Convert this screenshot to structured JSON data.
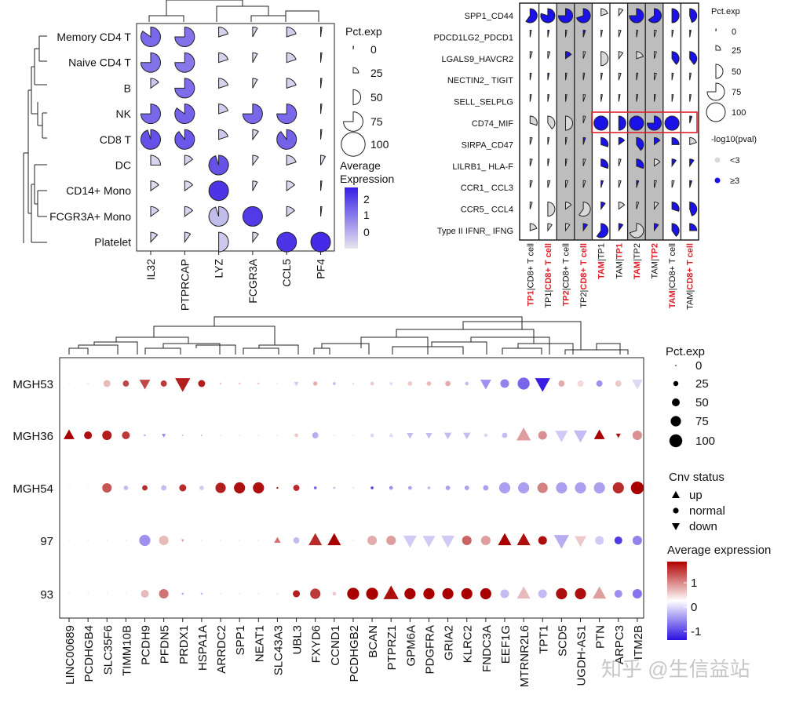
{
  "watermark": "知乎 @生信益站",
  "chart_data": [
    {
      "id": "topleft",
      "type": "pie-dotplot",
      "title": "",
      "rows": [
        "Memory CD4 T",
        "Naive CD4 T",
        "B",
        "NK",
        "CD8 T",
        "DC",
        "CD14+ Mono",
        "FCGR3A+ Mono",
        "Platelet"
      ],
      "cols": [
        "IL32",
        "PTPRCAP",
        "LYZ",
        "FCGR3A",
        "CCL5",
        "PF4"
      ],
      "pct_exp": [
        [
          85,
          75,
          20,
          8,
          20,
          2
        ],
        [
          75,
          75,
          20,
          8,
          20,
          2
        ],
        [
          15,
          75,
          20,
          8,
          20,
          2
        ],
        [
          75,
          85,
          20,
          75,
          75,
          2
        ],
        [
          95,
          90,
          20,
          10,
          90,
          2
        ],
        [
          25,
          15,
          95,
          10,
          20,
          8
        ],
        [
          15,
          15,
          100,
          8,
          15,
          2
        ],
        [
          15,
          15,
          95,
          100,
          15,
          2
        ],
        [
          12,
          10,
          50,
          10,
          100,
          100
        ]
      ],
      "avg_exp": [
        [
          1.2,
          1.0,
          -0.7,
          -0.8,
          -0.6,
          -0.9
        ],
        [
          1.0,
          0.9,
          -0.7,
          -0.8,
          -0.7,
          -0.9
        ],
        [
          -0.5,
          1.1,
          -0.7,
          -0.8,
          -0.7,
          -0.9
        ],
        [
          1.2,
          1.3,
          -0.6,
          1.2,
          1.2,
          -0.9
        ],
        [
          1.6,
          1.5,
          -0.5,
          -0.7,
          1.3,
          -0.9
        ],
        [
          -0.7,
          -0.7,
          1.6,
          -0.8,
          -0.7,
          -0.8
        ],
        [
          -0.8,
          -0.8,
          2.1,
          -0.8,
          -0.8,
          -0.9
        ],
        [
          -0.7,
          -0.7,
          -0.3,
          2.0,
          -0.7,
          -0.9
        ],
        [
          -0.7,
          -0.7,
          -0.5,
          -0.8,
          2.1,
          2.3
        ]
      ],
      "legend_size_title": "Pct.exp",
      "legend_size_values": [
        "0",
        "25",
        "50",
        "75",
        "100"
      ],
      "legend_color_title": "Average\nExpression",
      "legend_color_ticks": [
        "2",
        "1",
        "0"
      ]
    },
    {
      "id": "topright",
      "type": "pie-dotplot",
      "rows": [
        "SPP1_CD44",
        "PDCD1LG2_PDCD1",
        "LGALS9_HAVCR2",
        "NECTIN2_ TIGIT",
        "SELL_SELPLG",
        "CD74_MIF",
        "SIRPA_CD47",
        "LILRB1_ HLA-F",
        "CCR1_ CCL3",
        "CCR5_ CCL4",
        "Type II IFNR_ IFNG"
      ],
      "cols": [
        {
          "parts": [
            "TP1",
            "|CD8+ T cell"
          ],
          "red": [
            true,
            false
          ]
        },
        {
          "parts": [
            "TP1",
            "|",
            "CD8+ T cell"
          ],
          "red": [
            false,
            false,
            true
          ]
        },
        {
          "parts": [
            "TP2",
            "|CD8+ T cell"
          ],
          "red": [
            true,
            false
          ]
        },
        {
          "parts": [
            "TP2",
            "|",
            "CD8+ T cell"
          ],
          "red": [
            false,
            false,
            true
          ]
        },
        {
          "parts": [
            "TAM",
            "|TP1"
          ],
          "red": [
            true,
            false
          ]
        },
        {
          "parts": [
            "TAM|",
            "TP1"
          ],
          "red": [
            false,
            true
          ]
        },
        {
          "parts": [
            "TAM",
            "|TP2"
          ],
          "red": [
            true,
            false
          ]
        },
        {
          "parts": [
            "TAM|",
            "TP2"
          ],
          "red": [
            false,
            true
          ]
        },
        {
          "parts": [
            "TAM",
            "|CD8+ T cell"
          ],
          "red": [
            true,
            false
          ]
        },
        {
          "parts": [
            "TAM|",
            "CD8+ T cell"
          ],
          "red": [
            false,
            true
          ]
        }
      ],
      "shaded_cols": [
        2,
        3,
        6,
        7
      ],
      "pct": [
        [
          60,
          80,
          75,
          70,
          20,
          10,
          75,
          65,
          50,
          45
        ],
        [
          3,
          3,
          3,
          5,
          3,
          5,
          3,
          5,
          3,
          3
        ],
        [
          5,
          5,
          15,
          5,
          50,
          10,
          20,
          5,
          40,
          40
        ],
        [
          3,
          3,
          3,
          3,
          3,
          5,
          3,
          5,
          3,
          3
        ],
        [
          3,
          3,
          3,
          5,
          3,
          3,
          3,
          3,
          3,
          3
        ],
        [
          30,
          40,
          50,
          5,
          100,
          50,
          100,
          75,
          100,
          5
        ],
        [
          5,
          3,
          3,
          5,
          30,
          15,
          40,
          15,
          25,
          20
        ],
        [
          5,
          3,
          3,
          5,
          30,
          5,
          30,
          15,
          10,
          10
        ],
        [
          5,
          5,
          5,
          5,
          5,
          5,
          5,
          5,
          5,
          5
        ],
        [
          5,
          50,
          15,
          60,
          10,
          15,
          5,
          10,
          30,
          45
        ],
        [
          20,
          10,
          10,
          10,
          60,
          10,
          70,
          10,
          40,
          25
        ]
      ],
      "sig": [
        [
          1,
          1,
          1,
          1,
          0,
          0,
          1,
          1,
          1,
          1
        ],
        [
          0,
          1,
          0,
          1,
          0,
          0,
          0,
          0,
          0,
          1
        ],
        [
          0,
          0,
          1,
          0,
          0,
          0,
          0,
          0,
          1,
          1
        ],
        [
          0,
          1,
          0,
          0,
          0,
          0,
          0,
          0,
          0,
          0
        ],
        [
          0,
          0,
          0,
          0,
          0,
          0,
          0,
          0,
          0,
          0
        ],
        [
          0,
          0,
          0,
          0,
          1,
          1,
          1,
          1,
          1,
          1
        ],
        [
          0,
          0,
          0,
          1,
          1,
          1,
          1,
          1,
          1,
          0
        ],
        [
          0,
          0,
          0,
          0,
          1,
          0,
          1,
          0,
          1,
          1
        ],
        [
          0,
          0,
          0,
          0,
          1,
          0,
          1,
          0,
          0,
          1
        ],
        [
          0,
          0,
          0,
          0,
          1,
          0,
          0,
          0,
          1,
          1
        ],
        [
          0,
          0,
          0,
          1,
          1,
          1,
          0,
          1,
          1,
          1
        ]
      ],
      "highlight_row": "CD74_MIF",
      "legend_size_title": "Pct.exp",
      "legend_size_values": [
        "0",
        "25",
        "50",
        "75",
        "100"
      ],
      "legend_color_title": "-log10(pval)",
      "legend_color_values": [
        "<3",
        "≥3"
      ]
    },
    {
      "id": "bottom",
      "type": "scatter",
      "rows": [
        "MGH53",
        "MGH36",
        "MGH54",
        "97",
        "93"
      ],
      "cols": [
        "LINC00689",
        "PCDHGB4",
        "SLC35F6",
        "TIMM10B",
        "PCDH9",
        "PFDN5",
        "PRDX1",
        "HSPA1A",
        "ARRDC2",
        "SPP1",
        "NEAT1",
        "SLC43A3",
        "UBL3",
        "FXYD6",
        "CCND1",
        "PCDHGB2",
        "BCAN",
        "PTPRZ1",
        "GPM6A",
        "PDGFRA",
        "GRIA2",
        "KLRC2",
        "FNDC3A",
        "EEF1G",
        "MTRNR2L6",
        "TPT1",
        "SCD5",
        "UGDH-AS1",
        "PTN",
        "ARPC3",
        "ITM2B"
      ],
      "pct": [
        [
          1,
          3,
          35,
          30,
          55,
          30,
          80,
          35,
          5,
          5,
          5,
          2,
          20,
          18,
          10,
          5,
          15,
          10,
          20,
          20,
          25,
          15,
          55,
          45,
          65,
          80,
          30,
          30,
          30,
          30,
          55
        ],
        [
          55,
          40,
          50,
          40,
          3,
          15,
          5,
          2,
          2,
          2,
          2,
          2,
          15,
          30,
          2,
          2,
          15,
          20,
          30,
          30,
          35,
          35,
          15,
          25,
          75,
          45,
          65,
          70,
          55,
          20,
          50
        ],
        [
          1,
          1,
          50,
          20,
          25,
          25,
          35,
          20,
          55,
          60,
          60,
          3,
          30,
          10,
          5,
          5,
          10,
          15,
          15,
          10,
          20,
          20,
          25,
          60,
          60,
          55,
          60,
          60,
          60,
          60,
          70
        ],
        [
          1,
          1,
          1,
          2,
          60,
          50,
          10,
          2,
          2,
          2,
          2,
          30,
          30,
          70,
          70,
          2,
          50,
          50,
          70,
          65,
          70,
          50,
          50,
          70,
          70,
          45,
          80,
          60,
          45,
          40,
          50
        ],
        [
          1,
          1,
          1,
          1,
          40,
          50,
          5,
          5,
          2,
          2,
          2,
          5,
          35,
          55,
          15,
          65,
          65,
          80,
          60,
          60,
          60,
          60,
          60,
          45,
          70,
          45,
          60,
          60,
          70,
          40,
          50
        ]
      ],
      "avg": [
        [
          0,
          0,
          0.3,
          1.1,
          1.1,
          1.2,
          1.4,
          1.4,
          0.2,
          0.2,
          0.2,
          0,
          -0.2,
          0.4,
          -0.3,
          0.1,
          0.2,
          -0.1,
          0.2,
          0.3,
          0.4,
          -0.3,
          -0.6,
          -0.7,
          -0.9,
          -1.4,
          0.4,
          0.1,
          -0.6,
          0.2,
          -0.1
        ],
        [
          1.6,
          1.5,
          1.4,
          1.2,
          -0.5,
          -0.7,
          -0.3,
          -0.3,
          0,
          0,
          0,
          0,
          0.2,
          -0.4,
          0,
          0,
          -0.1,
          -0.1,
          -0.3,
          -0.3,
          -0.3,
          -0.3,
          -0.1,
          -0.3,
          0.5,
          0.6,
          -0.2,
          -0.3,
          1.6,
          1.5,
          0.6
        ],
        [
          0,
          0,
          1.0,
          -0.3,
          1.3,
          -0.3,
          1.3,
          -0.2,
          1.4,
          1.5,
          1.5,
          1.7,
          1.3,
          -0.9,
          -0.3,
          0,
          -1.1,
          -0.6,
          -0.5,
          -0.3,
          -0.5,
          -0.5,
          -0.5,
          -0.5,
          -0.5,
          0.7,
          -0.5,
          -0.5,
          -0.5,
          1.3,
          1.6
        ],
        [
          0,
          0,
          0,
          0,
          -0.6,
          0.3,
          0.5,
          0,
          0,
          0,
          0,
          0.8,
          -0.3,
          1.3,
          1.7,
          0,
          0.4,
          0.5,
          -0.2,
          -0.2,
          -0.2,
          0.9,
          0.5,
          1.6,
          1.5,
          1.5,
          -0.4,
          0.2,
          -0.2,
          -1.2,
          -0.7
        ],
        [
          0,
          0,
          0,
          0,
          0.3,
          0.8,
          -0.4,
          -0.3,
          0,
          0,
          0,
          0,
          1.4,
          1.2,
          0.2,
          1.7,
          1.6,
          1.5,
          1.6,
          1.6,
          1.7,
          1.7,
          1.7,
          -0.3,
          0.3,
          -0.3,
          1.5,
          1.5,
          0.5,
          -0.6,
          -0.8
        ]
      ],
      "cnv": [
        [
          "normal",
          "normal",
          "normal",
          "normal",
          "down",
          "normal",
          "down",
          "normal",
          "normal",
          "normal",
          "normal",
          "normal",
          "down",
          "normal",
          "normal",
          "normal",
          "normal",
          "normal",
          "normal",
          "normal",
          "normal",
          "normal",
          "down",
          "normal",
          "normal",
          "down",
          "normal",
          "normal",
          "normal",
          "normal",
          "down"
        ],
        [
          "up",
          "normal",
          "normal",
          "normal",
          "normal",
          "down",
          "down",
          "normal",
          "normal",
          "normal",
          "normal",
          "normal",
          "normal",
          "normal",
          "normal",
          "normal",
          "normal",
          "up",
          "down",
          "down",
          "down",
          "down",
          "normal",
          "normal",
          "up",
          "normal",
          "down",
          "down",
          "up",
          "down",
          "normal"
        ],
        [
          "normal",
          "normal",
          "normal",
          "normal",
          "normal",
          "normal",
          "normal",
          "normal",
          "normal",
          "normal",
          "normal",
          "normal",
          "normal",
          "normal",
          "normal",
          "normal",
          "normal",
          "normal",
          "normal",
          "normal",
          "normal",
          "normal",
          "normal",
          "normal",
          "normal",
          "normal",
          "normal",
          "normal",
          "normal",
          "normal",
          "normal"
        ],
        [
          "normal",
          "normal",
          "normal",
          "normal",
          "normal",
          "normal",
          "down",
          "normal",
          "normal",
          "normal",
          "normal",
          "up",
          "normal",
          "up",
          "up",
          "normal",
          "normal",
          "normal",
          "down",
          "down",
          "down",
          "normal",
          "normal",
          "up",
          "up",
          "normal",
          "down",
          "down",
          "normal",
          "normal",
          "normal"
        ],
        [
          "normal",
          "normal",
          "normal",
          "normal",
          "normal",
          "normal",
          "normal",
          "normal",
          "normal",
          "normal",
          "normal",
          "normal",
          "normal",
          "normal",
          "normal",
          "normal",
          "normal",
          "up",
          "normal",
          "normal",
          "normal",
          "normal",
          "normal",
          "normal",
          "up",
          "normal",
          "normal",
          "normal",
          "up",
          "normal",
          "normal"
        ]
      ],
      "legend_size_title": "Pct.exp",
      "legend_size_values": [
        "0",
        "25",
        "50",
        "75",
        "100"
      ],
      "legend_cnv_title": "Cnv status",
      "legend_cnv_values": [
        "up",
        "normal",
        "down"
      ],
      "legend_color_title": "Average expression",
      "legend_color_ticks": [
        "1",
        "0",
        "-1"
      ]
    }
  ]
}
